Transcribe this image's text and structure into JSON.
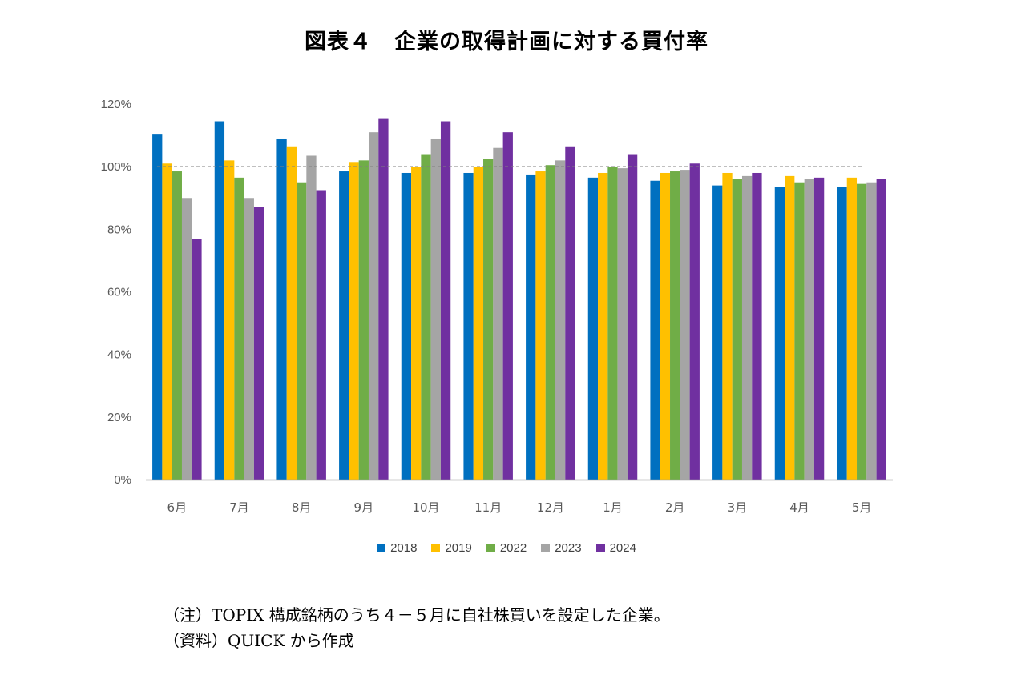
{
  "title": "図表４　企業の取得計画に対する買付率",
  "chart_data": {
    "type": "bar",
    "categories": [
      "6月",
      "7月",
      "8月",
      "9月",
      "10月",
      "11月",
      "12月",
      "1月",
      "2月",
      "3月",
      "4月",
      "5月"
    ],
    "series": [
      {
        "name": "2018",
        "color": "#0070C0",
        "values": [
          110.5,
          114.5,
          109.0,
          98.5,
          98.0,
          98.0,
          97.5,
          96.5,
          95.5,
          94.0,
          93.5,
          93.5
        ]
      },
      {
        "name": "2019",
        "color": "#FFC000",
        "values": [
          101.0,
          102.0,
          106.5,
          101.5,
          100.0,
          100.0,
          98.5,
          98.0,
          98.0,
          98.0,
          97.0,
          96.5
        ]
      },
      {
        "name": "2022",
        "color": "#70AD47",
        "values": [
          98.5,
          96.5,
          95.0,
          102.0,
          104.0,
          102.5,
          100.5,
          100.0,
          98.5,
          96.0,
          95.0,
          94.5
        ]
      },
      {
        "name": "2023",
        "color": "#A5A5A5",
        "values": [
          90.0,
          90.0,
          103.5,
          111.0,
          109.0,
          106.0,
          102.0,
          99.5,
          99.0,
          97.0,
          96.0,
          95.0
        ]
      },
      {
        "name": "2024",
        "color": "#7030A0",
        "values": [
          77.0,
          87.0,
          92.5,
          115.5,
          114.5,
          111.0,
          106.5,
          104.0,
          101.0,
          98.0,
          96.5,
          96.0
        ]
      }
    ],
    "yticks": [
      "0%",
      "20%",
      "40%",
      "60%",
      "80%",
      "100%",
      "120%"
    ],
    "ylim": [
      0,
      120
    ],
    "reference_line": 100,
    "legend_position": "bottom",
    "grid": false
  },
  "notes": [
    "（注）TOPIX 構成銘柄のうち４－５月に自社株買いを設定した企業。",
    "（資料）QUICK から作成"
  ]
}
